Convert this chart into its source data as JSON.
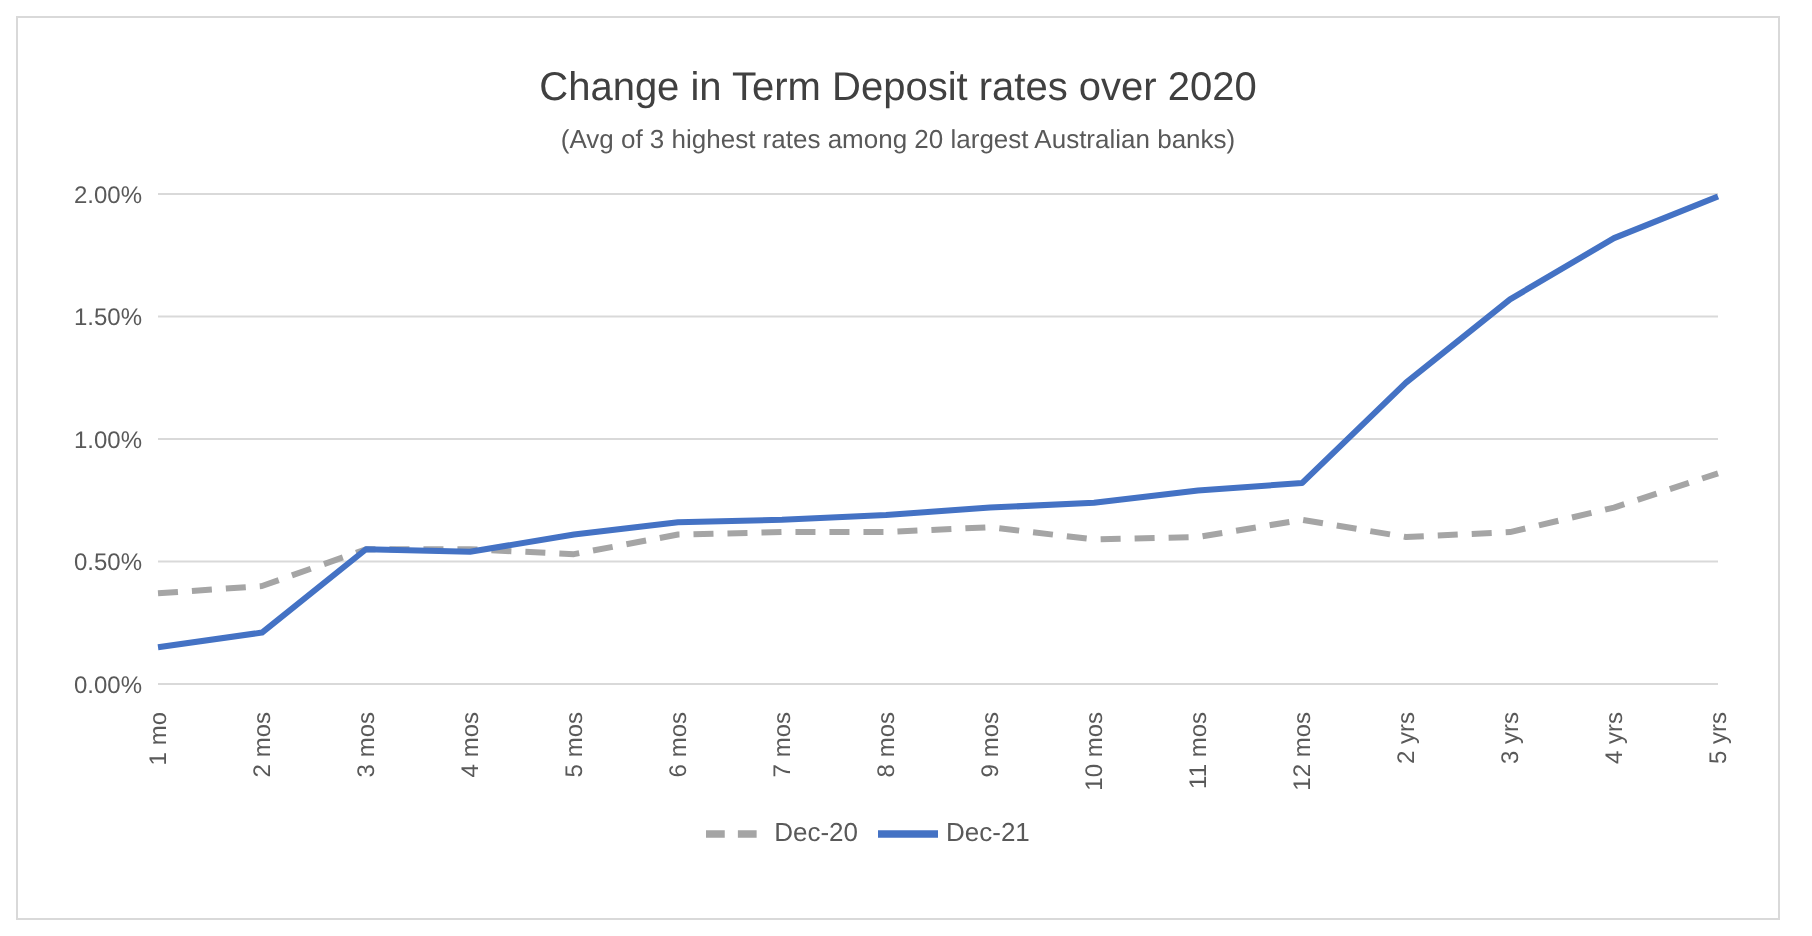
{
  "chart_data": {
    "type": "line",
    "title": "Change in Term Deposit rates over 2020",
    "subtitle": "(Avg of 3 highest rates among 20 largest Australian banks)",
    "categories": [
      "1 mo",
      "2 mos",
      "3 mos",
      "4 mos",
      "5 mos",
      "6 mos",
      "7 mos",
      "8 mos",
      "9 mos",
      "10 mos",
      "11 mos",
      "12 mos",
      "2 yrs",
      "3 yrs",
      "4 yrs",
      "5 yrs"
    ],
    "series": [
      {
        "name": "Dec-20",
        "color": "#a5a5a5",
        "line_style": "dashed",
        "values": [
          0.37,
          0.4,
          0.55,
          0.55,
          0.53,
          0.61,
          0.62,
          0.62,
          0.64,
          0.59,
          0.6,
          0.67,
          0.6,
          0.62,
          0.72,
          0.86
        ]
      },
      {
        "name": "Dec-21",
        "color": "#4472c4",
        "line_style": "solid",
        "values": [
          0.15,
          0.21,
          0.55,
          0.54,
          0.61,
          0.66,
          0.67,
          0.69,
          0.72,
          0.74,
          0.79,
          0.82,
          1.23,
          1.57,
          1.82,
          1.99
        ]
      }
    ],
    "ylim": [
      0,
      2
    ],
    "yticks": [
      {
        "value": 0,
        "label": "0.00%"
      },
      {
        "value": 0.5,
        "label": "0.50%"
      },
      {
        "value": 1,
        "label": "1.00%"
      },
      {
        "value": 1.5,
        "label": "1.50%"
      },
      {
        "value": 2,
        "label": "2.00%"
      }
    ],
    "grid": "y",
    "legend": "bottom",
    "marker": "none"
  }
}
